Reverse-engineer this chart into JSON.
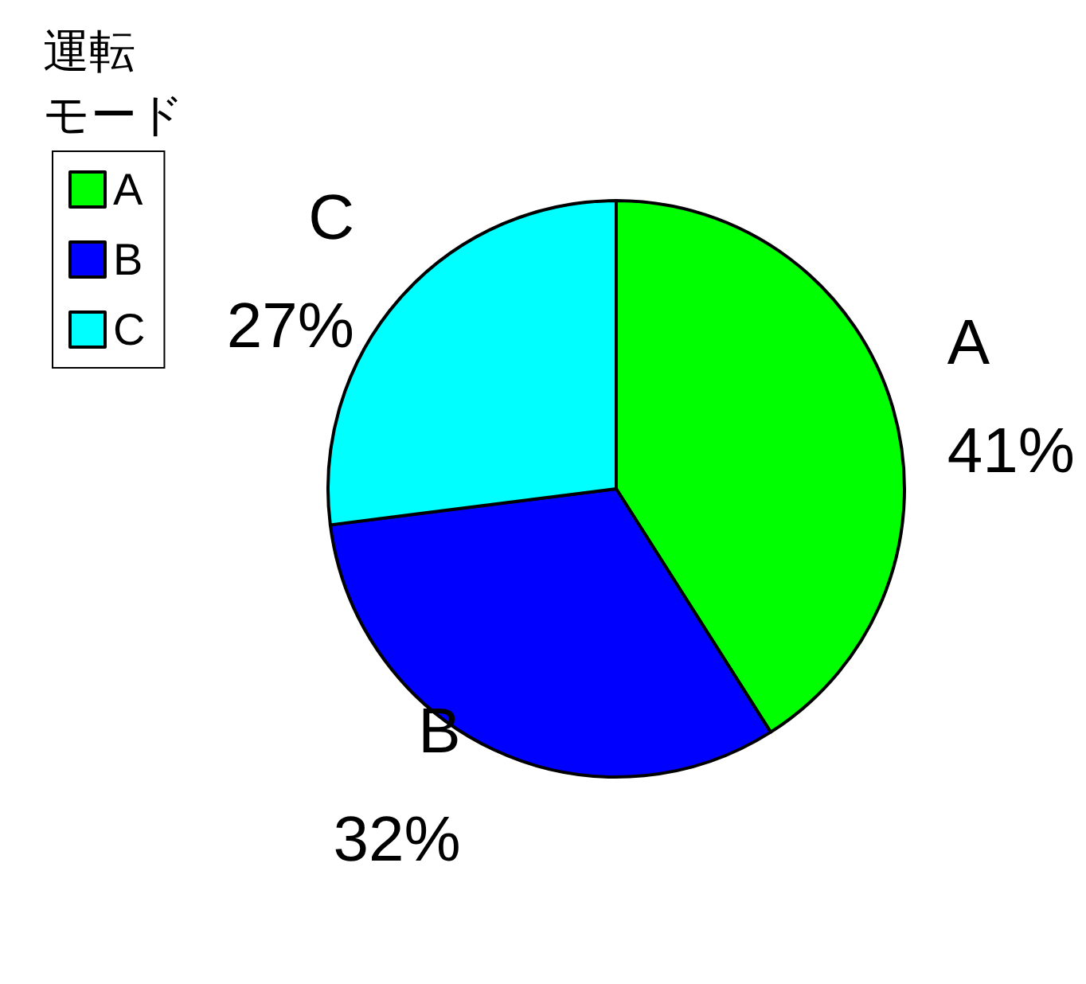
{
  "chart_data": {
    "type": "pie",
    "legend_title": "運転モード",
    "legend": "top left",
    "categories": [
      "A",
      "B",
      "C"
    ],
    "values": [
      41,
      32,
      27
    ],
    "value_labels": [
      "41%",
      "32%",
      "27%"
    ],
    "colors": [
      "#00ff00",
      "#0000ff",
      "#00ffff"
    ]
  }
}
